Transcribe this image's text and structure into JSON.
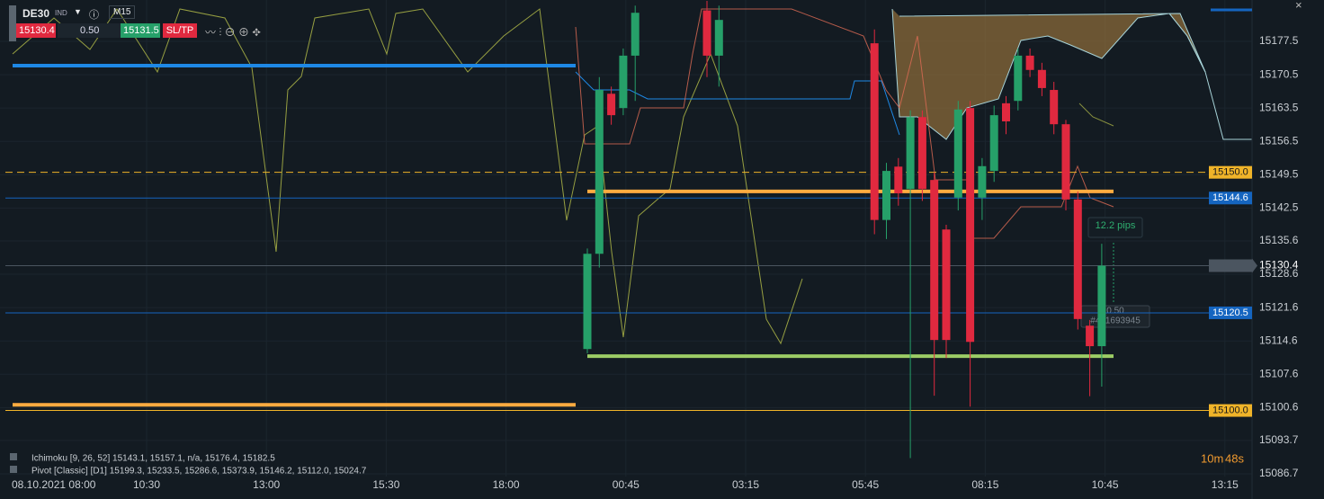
{
  "toolbar": {
    "symbol": "DE30",
    "market": "IND",
    "timeframe": "M15",
    "bid": "15130.4",
    "spread": "0.50",
    "ask": "15131.5",
    "sltp": "SL/TP"
  },
  "price_ticks": [
    15177.5,
    15170.5,
    15163.5,
    15156.5,
    15149.5,
    15142.5,
    15135.6,
    15128.6,
    15121.6,
    15114.6,
    15107.6,
    15100.6,
    15093.7,
    15086.7
  ],
  "time_labels": [
    "08.10.2021 08:00",
    "10:30",
    "13:00",
    "15:30",
    "18:00",
    "00:45",
    "03:15",
    "05:45",
    "08:15",
    "10:45",
    "13:15"
  ],
  "price_tags": [
    {
      "value": 15150.0,
      "label": "15150.0",
      "color": "#f0b429"
    },
    {
      "value": 15144.6,
      "label": "15144.6",
      "color": "#1565c0"
    },
    {
      "value": 15120.5,
      "label": "15120.5",
      "color": "#1565c0"
    },
    {
      "value": 15100.0,
      "label": "15100.0",
      "color": "#f0b429"
    },
    {
      "value": 15130.4,
      "label": "15130.4",
      "color": "#4b5560"
    }
  ],
  "drawings": [
    {
      "value": 15172.4,
      "color": "#1e88e5"
    },
    {
      "value": 15146.0,
      "color": "#ffab40"
    },
    {
      "value": 15111.4,
      "color": "#9ccc65"
    },
    {
      "value": 15101.2,
      "color": "#ffab40"
    }
  ],
  "candles": [
    {
      "open": 15112.9,
      "high": 15134,
      "low": 15112,
      "close": 15132.9
    },
    {
      "open": 15132.9,
      "high": 15170,
      "low": 15130,
      "close": 15167.3
    },
    {
      "open": 15166.5,
      "high": 15168,
      "low": 15160,
      "close": 15162.0
    },
    {
      "open": 15163.5,
      "high": 15176,
      "low": 15162,
      "close": 15174.5
    },
    {
      "open": 15174.5,
      "high": 15185,
      "low": 15165,
      "close": 15183.5
    },
    null,
    null,
    null,
    null,
    null,
    {
      "open": 15184,
      "high": 15186,
      "low": 15170,
      "close": 15174.5
    },
    {
      "open": 15174.5,
      "high": 15185,
      "low": 15168,
      "close": 15182
    },
    null,
    null,
    null,
    null,
    null,
    null,
    null,
    null,
    null,
    null,
    null,
    null,
    {
      "open": 15177.1,
      "high": 15180,
      "low": 15137,
      "close": 15140.0
    },
    {
      "open": 15140.0,
      "high": 15152,
      "low": 15136,
      "close": 15150.3
    },
    {
      "open": 15151.2,
      "high": 15153,
      "low": 15143,
      "close": 15145.6
    },
    {
      "open": 15146.5,
      "high": 15163,
      "low": 15090,
      "close": 15161.6
    },
    {
      "open": 15161.6,
      "high": 15163,
      "low": 15144,
      "close": 15146.5
    },
    {
      "open": 15148.4,
      "high": 15150,
      "low": 15103.1,
      "close": 15114.8
    },
    {
      "open": 15138.0,
      "high": 15139,
      "low": 15111,
      "close": 15114.8
    },
    {
      "open": 15144.7,
      "high": 15165,
      "low": 15142,
      "close": 15163.2
    },
    {
      "open": 15163.5,
      "high": 15165,
      "low": 15100.8,
      "close": 15114.4
    },
    {
      "open": 15144.7,
      "high": 15153,
      "low": 15140,
      "close": 15151.3
    },
    {
      "open": 15150.3,
      "high": 15164,
      "low": 15148,
      "close": 15162.0
    },
    {
      "open": 15164.5,
      "high": 15166,
      "low": 15158,
      "close": 15160.7
    },
    {
      "open": 15165.0,
      "high": 15176,
      "low": 15163,
      "close": 15174.5
    },
    {
      "open": 15174.5,
      "high": 15176,
      "low": 15170,
      "close": 15171.5
    },
    {
      "open": 15171.5,
      "high": 15173,
      "low": 15166,
      "close": 15167.7
    },
    {
      "open": 15167.3,
      "high": 15169,
      "low": 15158,
      "close": 15160.1
    },
    {
      "open": 15160.1,
      "high": 15161,
      "low": 15142,
      "close": 15144.3
    },
    {
      "open": 15144.3,
      "high": 15146,
      "low": 15117,
      "close": 15119.2
    },
    {
      "open": 15117.8,
      "high": 15119,
      "low": 15103,
      "close": 15113.5
    },
    {
      "open": 15113.5,
      "high": 15135,
      "low": 15105,
      "close": 15130.4
    }
  ],
  "order": {
    "pips": "12.2 pips",
    "volume": "0.50",
    "ticket": "#461693945"
  },
  "legend": [
    "Ichimoku [9, 26, 52] 15143.1, 15157.1, n/a, 15176.4, 15182.5",
    "Pivot [Classic] [D1] 15199.3, 15233.5, 15286.6, 15373.9, 15146.2, 15112.0, 15024.7"
  ],
  "countdown": {
    "minutes": "10m",
    "seconds": "48s"
  }
}
